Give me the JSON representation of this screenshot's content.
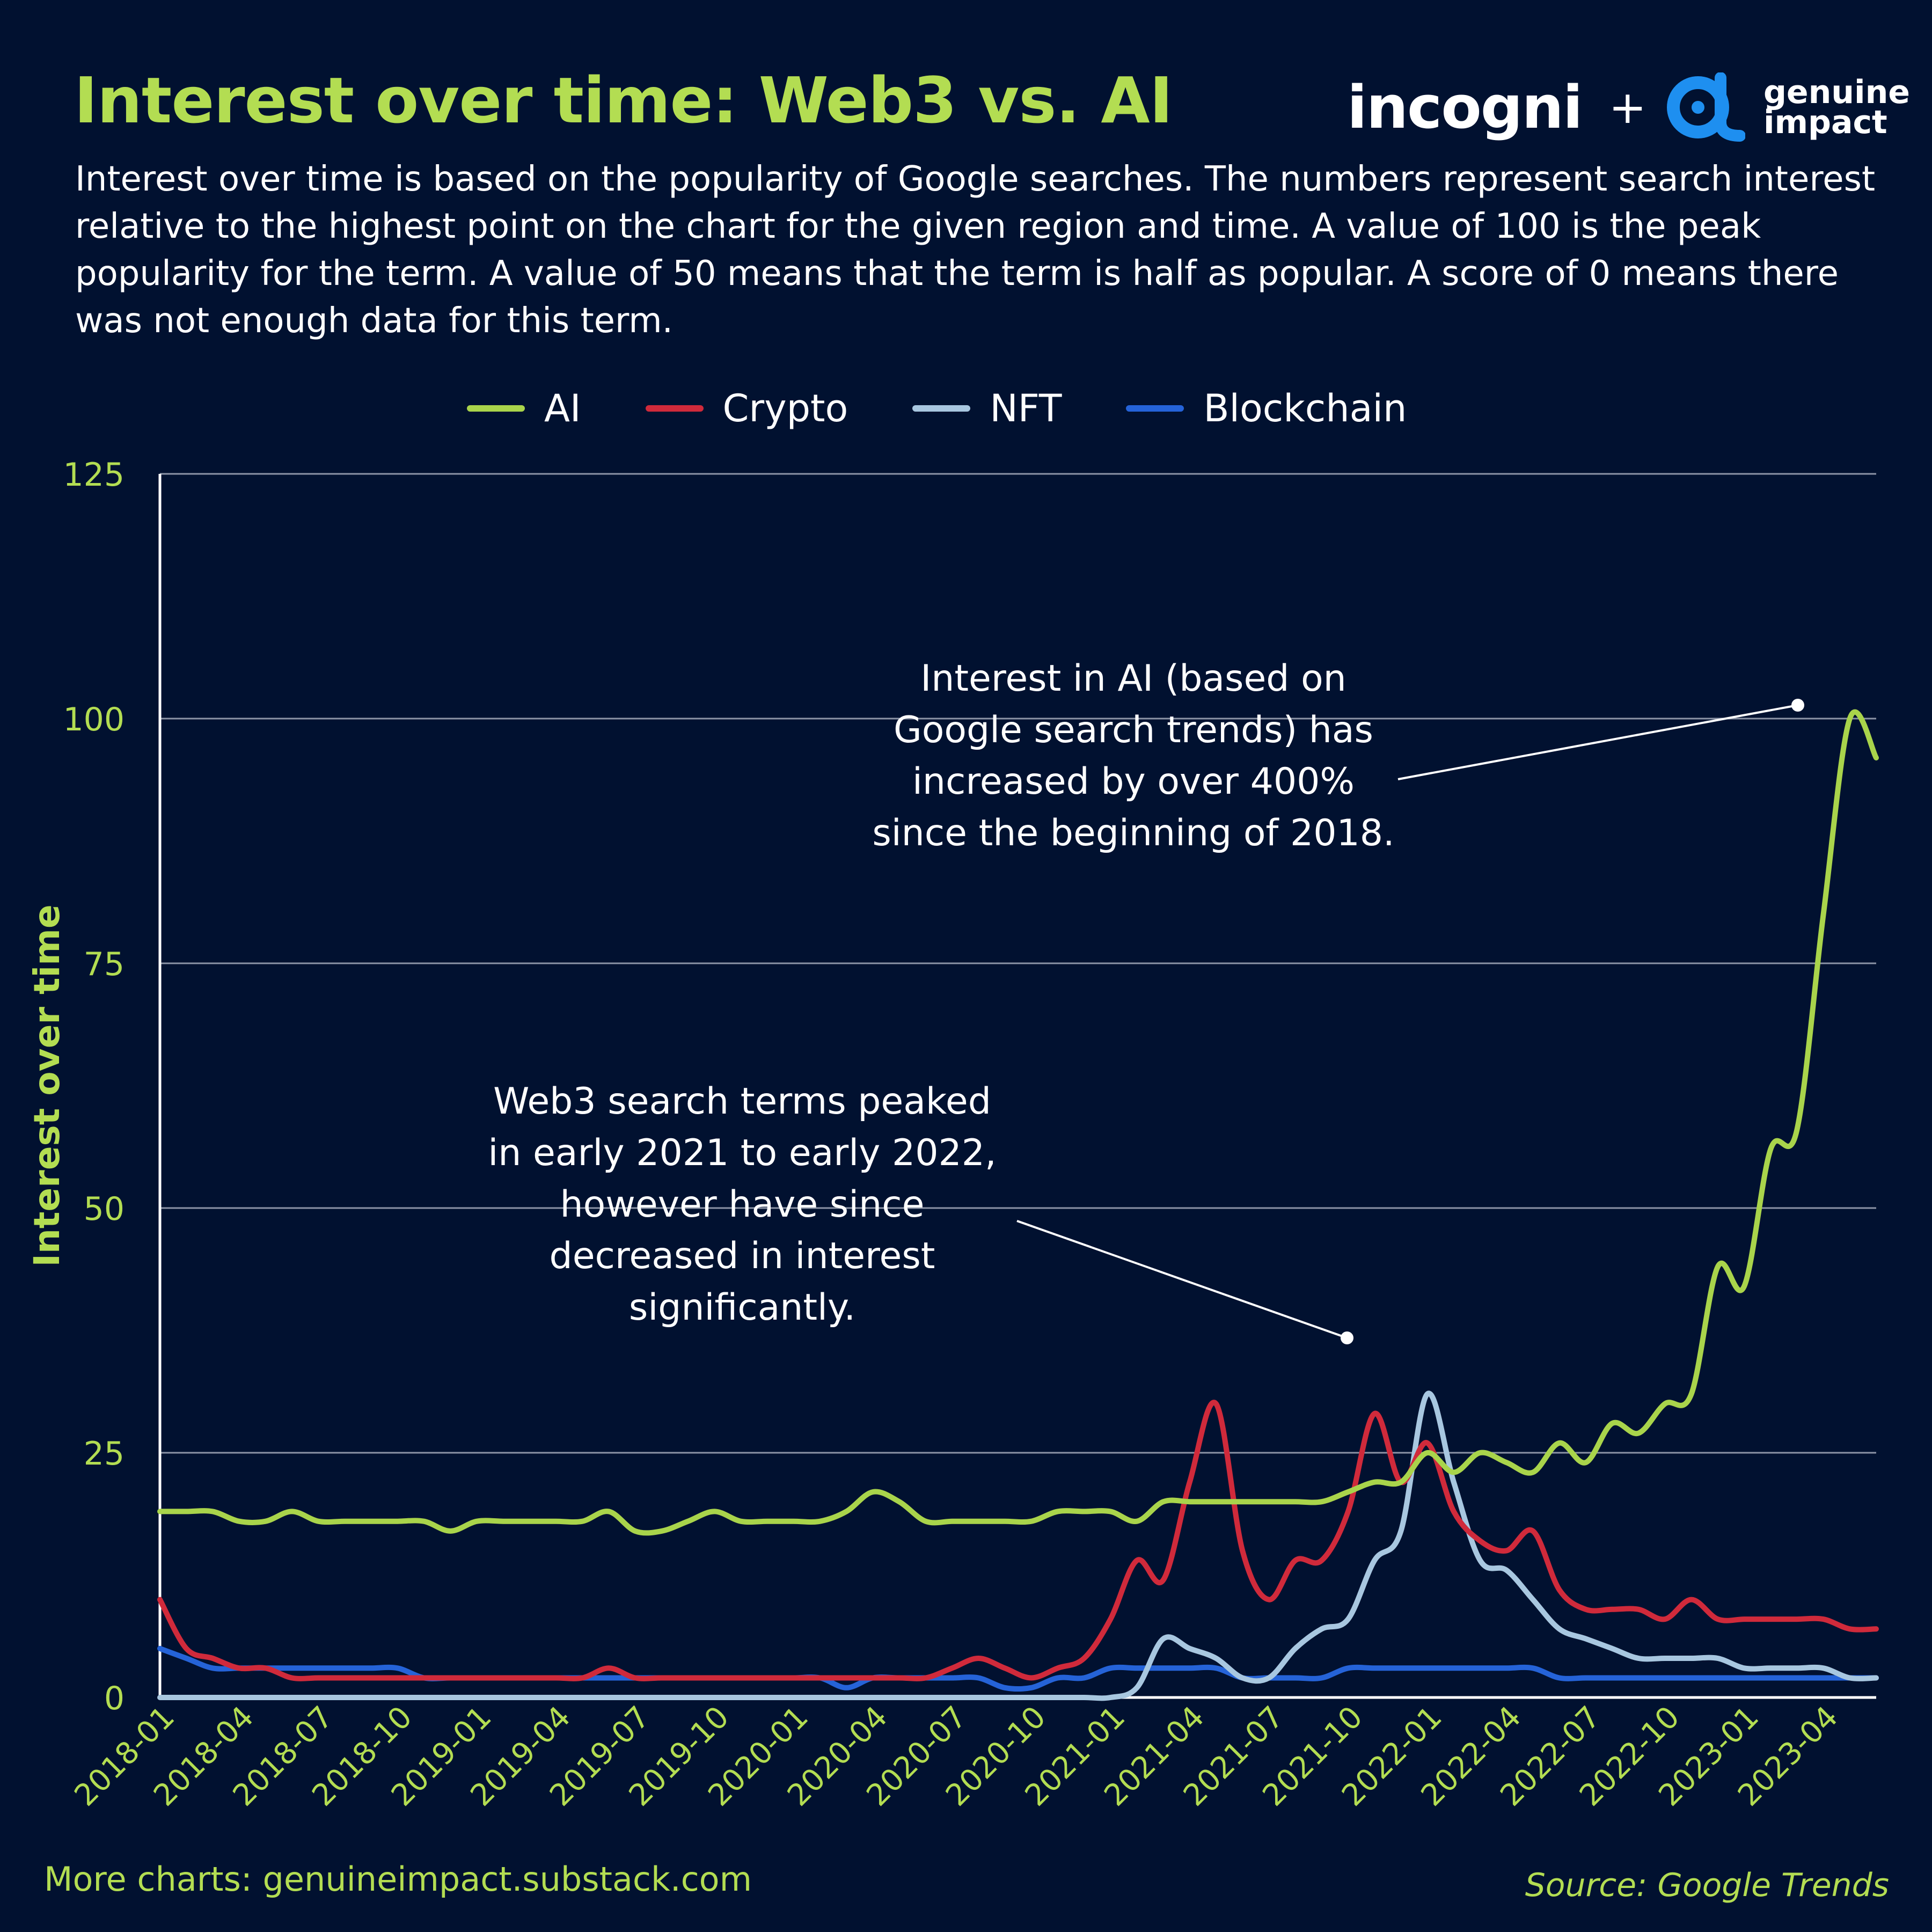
{
  "title": "Interest over time: Web3 vs. AI",
  "subtitle": "Interest over time is based on the popularity of Google searches. The numbers represent search interest relative to the highest point on the chart for the given region and time. A value of 100 is the peak popularity for the term. A value of 50 means that the term is half as popular. A score of 0 means there was not enough data for this term.",
  "brand": {
    "incogni": "incogni",
    "plus": "+",
    "genuine": "genuine",
    "impact": "impact"
  },
  "footer": {
    "left": "More charts: genuineimpact.substack.com",
    "right": "Source: Google Trends"
  },
  "annotations": {
    "ai": [
      "Interest in AI (based on",
      "Google search trends) has",
      "increased by over 400%",
      "since the beginning of 2018."
    ],
    "web3": [
      "Web3 search terms peaked",
      "in early 2021 to early 2022,",
      "however have since",
      "decreased in interest",
      "significantly."
    ]
  },
  "colors": {
    "background": "#011130",
    "accent": "#b3dd52",
    "ai": "#a9d44b",
    "crypto": "#d02a3b",
    "nft": "#a8c7e0",
    "blockchain": "#2563d8",
    "grid": "#8c94a6"
  },
  "chart_data": {
    "type": "line",
    "ylabel": "Interest over time",
    "xlabel": "",
    "ylim": [
      0,
      125
    ],
    "yticks": [
      0,
      25,
      50,
      75,
      100,
      125
    ],
    "grid": true,
    "legend_position": "top",
    "x_start": "2018-01",
    "x_end": "2023-06",
    "xtick_labels": [
      "2018-01",
      "2018-04",
      "2018-07",
      "2018-10",
      "2019-01",
      "2019-04",
      "2019-07",
      "2019-10",
      "2020-01",
      "2020-04",
      "2020-07",
      "2020-10",
      "2021-01",
      "2021-04",
      "2021-07",
      "2021-10",
      "2022-01",
      "2022-04",
      "2022-07",
      "2022-10",
      "2023-01",
      "2023-04"
    ],
    "series": [
      {
        "name": "AI",
        "color_key": "ai",
        "points": [
          [
            "2018-01",
            19
          ],
          [
            "2018-02",
            19
          ],
          [
            "2018-03",
            19
          ],
          [
            "2018-04",
            18
          ],
          [
            "2018-05",
            18
          ],
          [
            "2018-06",
            19
          ],
          [
            "2018-07",
            18
          ],
          [
            "2018-08",
            18
          ],
          [
            "2018-09",
            18
          ],
          [
            "2018-10",
            18
          ],
          [
            "2018-11",
            18
          ],
          [
            "2018-12",
            17
          ],
          [
            "2019-01",
            18
          ],
          [
            "2019-02",
            18
          ],
          [
            "2019-03",
            18
          ],
          [
            "2019-04",
            18
          ],
          [
            "2019-05",
            18
          ],
          [
            "2019-06",
            19
          ],
          [
            "2019-07",
            17
          ],
          [
            "2019-08",
            17
          ],
          [
            "2019-09",
            18
          ],
          [
            "2019-10",
            19
          ],
          [
            "2019-11",
            18
          ],
          [
            "2019-12",
            18
          ],
          [
            "2020-01",
            18
          ],
          [
            "2020-02",
            18
          ],
          [
            "2020-03",
            19
          ],
          [
            "2020-04",
            21
          ],
          [
            "2020-05",
            20
          ],
          [
            "2020-06",
            18
          ],
          [
            "2020-07",
            18
          ],
          [
            "2020-08",
            18
          ],
          [
            "2020-09",
            18
          ],
          [
            "2020-10",
            18
          ],
          [
            "2020-11",
            19
          ],
          [
            "2020-12",
            19
          ],
          [
            "2021-01",
            19
          ],
          [
            "2021-02",
            18
          ],
          [
            "2021-03",
            20
          ],
          [
            "2021-04",
            20
          ],
          [
            "2021-05",
            20
          ],
          [
            "2021-06",
            20
          ],
          [
            "2021-07",
            20
          ],
          [
            "2021-08",
            20
          ],
          [
            "2021-09",
            20
          ],
          [
            "2021-10",
            21
          ],
          [
            "2021-11",
            22
          ],
          [
            "2021-12",
            22
          ],
          [
            "2022-01",
            25
          ],
          [
            "2022-02",
            23
          ],
          [
            "2022-03",
            25
          ],
          [
            "2022-04",
            24
          ],
          [
            "2022-05",
            23
          ],
          [
            "2022-06",
            26
          ],
          [
            "2022-07",
            24
          ],
          [
            "2022-08",
            28
          ],
          [
            "2022-09",
            27
          ],
          [
            "2022-10",
            30
          ],
          [
            "2022-11",
            31
          ],
          [
            "2022-12",
            44
          ],
          [
            "2023-01",
            42
          ],
          [
            "2023-02",
            56
          ],
          [
            "2023-03",
            58
          ],
          [
            "2023-04",
            80
          ],
          [
            "2023-05",
            100
          ],
          [
            "2023-06",
            96
          ]
        ]
      },
      {
        "name": "Crypto",
        "color_key": "crypto",
        "points": [
          [
            "2018-01",
            10
          ],
          [
            "2018-02",
            5
          ],
          [
            "2018-03",
            4
          ],
          [
            "2018-04",
            3
          ],
          [
            "2018-05",
            3
          ],
          [
            "2018-06",
            2
          ],
          [
            "2018-07",
            2
          ],
          [
            "2018-08",
            2
          ],
          [
            "2018-09",
            2
          ],
          [
            "2018-10",
            2
          ],
          [
            "2018-11",
            2
          ],
          [
            "2018-12",
            2
          ],
          [
            "2019-01",
            2
          ],
          [
            "2019-02",
            2
          ],
          [
            "2019-03",
            2
          ],
          [
            "2019-04",
            2
          ],
          [
            "2019-05",
            2
          ],
          [
            "2019-06",
            3
          ],
          [
            "2019-07",
            2
          ],
          [
            "2019-08",
            2
          ],
          [
            "2019-09",
            2
          ],
          [
            "2019-10",
            2
          ],
          [
            "2019-11",
            2
          ],
          [
            "2019-12",
            2
          ],
          [
            "2020-01",
            2
          ],
          [
            "2020-02",
            2
          ],
          [
            "2020-03",
            2
          ],
          [
            "2020-04",
            2
          ],
          [
            "2020-05",
            2
          ],
          [
            "2020-06",
            2
          ],
          [
            "2020-07",
            3
          ],
          [
            "2020-08",
            4
          ],
          [
            "2020-09",
            3
          ],
          [
            "2020-10",
            2
          ],
          [
            "2020-11",
            3
          ],
          [
            "2020-12",
            4
          ],
          [
            "2021-01",
            8
          ],
          [
            "2021-02",
            14
          ],
          [
            "2021-03",
            12
          ],
          [
            "2021-04",
            22
          ],
          [
            "2021-05",
            30
          ],
          [
            "2021-06",
            15
          ],
          [
            "2021-07",
            10
          ],
          [
            "2021-08",
            14
          ],
          [
            "2021-09",
            14
          ],
          [
            "2021-10",
            19
          ],
          [
            "2021-11",
            29
          ],
          [
            "2021-12",
            22
          ],
          [
            "2022-01",
            26
          ],
          [
            "2022-02",
            19
          ],
          [
            "2022-03",
            16
          ],
          [
            "2022-04",
            15
          ],
          [
            "2022-05",
            17
          ],
          [
            "2022-06",
            11
          ],
          [
            "2022-07",
            9
          ],
          [
            "2022-08",
            9
          ],
          [
            "2022-09",
            9
          ],
          [
            "2022-10",
            8
          ],
          [
            "2022-11",
            10
          ],
          [
            "2022-12",
            8
          ],
          [
            "2023-01",
            8
          ],
          [
            "2023-02",
            8
          ],
          [
            "2023-03",
            8
          ],
          [
            "2023-04",
            8
          ],
          [
            "2023-05",
            7
          ],
          [
            "2023-06",
            7
          ]
        ]
      },
      {
        "name": "NFT",
        "color_key": "nft",
        "points": [
          [
            "2018-01",
            0
          ],
          [
            "2018-02",
            0
          ],
          [
            "2018-03",
            0
          ],
          [
            "2018-04",
            0
          ],
          [
            "2018-05",
            0
          ],
          [
            "2018-06",
            0
          ],
          [
            "2018-07",
            0
          ],
          [
            "2018-08",
            0
          ],
          [
            "2018-09",
            0
          ],
          [
            "2018-10",
            0
          ],
          [
            "2018-11",
            0
          ],
          [
            "2018-12",
            0
          ],
          [
            "2019-01",
            0
          ],
          [
            "2019-02",
            0
          ],
          [
            "2019-03",
            0
          ],
          [
            "2019-04",
            0
          ],
          [
            "2019-05",
            0
          ],
          [
            "2019-06",
            0
          ],
          [
            "2019-07",
            0
          ],
          [
            "2019-08",
            0
          ],
          [
            "2019-09",
            0
          ],
          [
            "2019-10",
            0
          ],
          [
            "2019-11",
            0
          ],
          [
            "2019-12",
            0
          ],
          [
            "2020-01",
            0
          ],
          [
            "2020-02",
            0
          ],
          [
            "2020-03",
            0
          ],
          [
            "2020-04",
            0
          ],
          [
            "2020-05",
            0
          ],
          [
            "2020-06",
            0
          ],
          [
            "2020-07",
            0
          ],
          [
            "2020-08",
            0
          ],
          [
            "2020-09",
            0
          ],
          [
            "2020-10",
            0
          ],
          [
            "2020-11",
            0
          ],
          [
            "2020-12",
            0
          ],
          [
            "2021-01",
            0
          ],
          [
            "2021-02",
            1
          ],
          [
            "2021-03",
            6
          ],
          [
            "2021-04",
            5
          ],
          [
            "2021-05",
            4
          ],
          [
            "2021-06",
            2
          ],
          [
            "2021-07",
            2
          ],
          [
            "2021-08",
            5
          ],
          [
            "2021-09",
            7
          ],
          [
            "2021-10",
            8
          ],
          [
            "2021-11",
            14
          ],
          [
            "2021-12",
            17
          ],
          [
            "2022-01",
            31
          ],
          [
            "2022-02",
            22
          ],
          [
            "2022-03",
            14
          ],
          [
            "2022-04",
            13
          ],
          [
            "2022-05",
            10
          ],
          [
            "2022-06",
            7
          ],
          [
            "2022-07",
            6
          ],
          [
            "2022-08",
            5
          ],
          [
            "2022-09",
            4
          ],
          [
            "2022-10",
            4
          ],
          [
            "2022-11",
            4
          ],
          [
            "2022-12",
            4
          ],
          [
            "2023-01",
            3
          ],
          [
            "2023-02",
            3
          ],
          [
            "2023-03",
            3
          ],
          [
            "2023-04",
            3
          ],
          [
            "2023-05",
            2
          ],
          [
            "2023-06",
            2
          ]
        ]
      },
      {
        "name": "Blockchain",
        "color_key": "blockchain",
        "points": [
          [
            "2018-01",
            5
          ],
          [
            "2018-02",
            4
          ],
          [
            "2018-03",
            3
          ],
          [
            "2018-04",
            3
          ],
          [
            "2018-05",
            3
          ],
          [
            "2018-06",
            3
          ],
          [
            "2018-07",
            3
          ],
          [
            "2018-08",
            3
          ],
          [
            "2018-09",
            3
          ],
          [
            "2018-10",
            3
          ],
          [
            "2018-11",
            2
          ],
          [
            "2018-12",
            2
          ],
          [
            "2019-01",
            2
          ],
          [
            "2019-02",
            2
          ],
          [
            "2019-03",
            2
          ],
          [
            "2019-04",
            2
          ],
          [
            "2019-05",
            2
          ],
          [
            "2019-06",
            2
          ],
          [
            "2019-07",
            2
          ],
          [
            "2019-08",
            2
          ],
          [
            "2019-09",
            2
          ],
          [
            "2019-10",
            2
          ],
          [
            "2019-11",
            2
          ],
          [
            "2019-12",
            2
          ],
          [
            "2020-01",
            2
          ],
          [
            "2020-02",
            2
          ],
          [
            "2020-03",
            1
          ],
          [
            "2020-04",
            2
          ],
          [
            "2020-05",
            2
          ],
          [
            "2020-06",
            2
          ],
          [
            "2020-07",
            2
          ],
          [
            "2020-08",
            2
          ],
          [
            "2020-09",
            1
          ],
          [
            "2020-10",
            1
          ],
          [
            "2020-11",
            2
          ],
          [
            "2020-12",
            2
          ],
          [
            "2021-01",
            3
          ],
          [
            "2021-02",
            3
          ],
          [
            "2021-03",
            3
          ],
          [
            "2021-04",
            3
          ],
          [
            "2021-05",
            3
          ],
          [
            "2021-06",
            2
          ],
          [
            "2021-07",
            2
          ],
          [
            "2021-08",
            2
          ],
          [
            "2021-09",
            2
          ],
          [
            "2021-10",
            3
          ],
          [
            "2021-11",
            3
          ],
          [
            "2021-12",
            3
          ],
          [
            "2022-01",
            3
          ],
          [
            "2022-02",
            3
          ],
          [
            "2022-03",
            3
          ],
          [
            "2022-04",
            3
          ],
          [
            "2022-05",
            3
          ],
          [
            "2022-06",
            2
          ],
          [
            "2022-07",
            2
          ],
          [
            "2022-08",
            2
          ],
          [
            "2022-09",
            2
          ],
          [
            "2022-10",
            2
          ],
          [
            "2022-11",
            2
          ],
          [
            "2022-12",
            2
          ],
          [
            "2023-01",
            2
          ],
          [
            "2023-02",
            2
          ],
          [
            "2023-03",
            2
          ],
          [
            "2023-04",
            2
          ],
          [
            "2023-05",
            2
          ],
          [
            "2023-06",
            2
          ]
        ]
      }
    ]
  }
}
